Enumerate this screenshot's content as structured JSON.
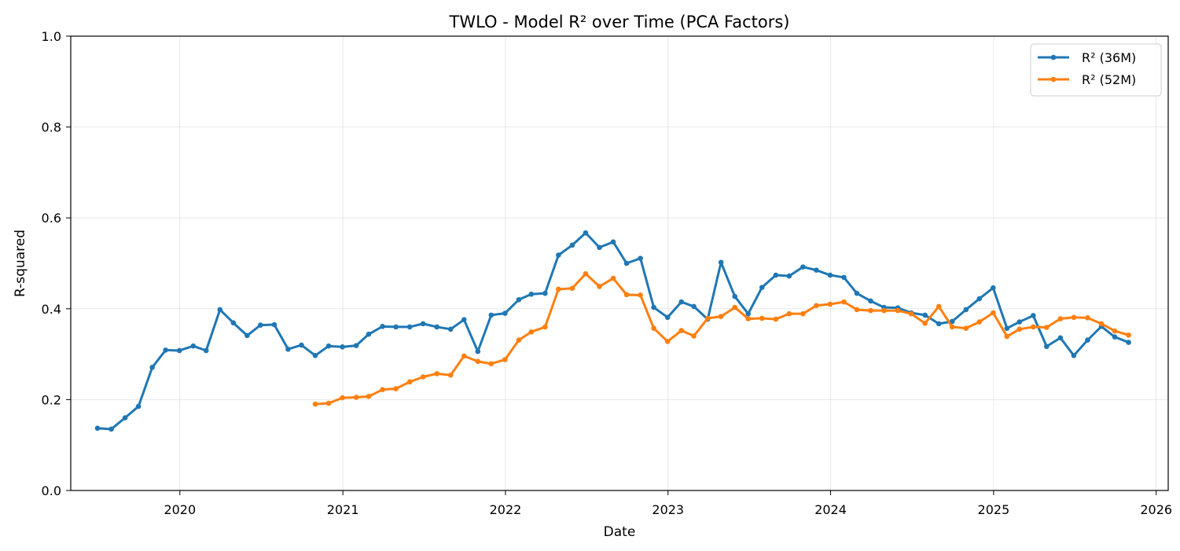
{
  "chart_data": {
    "type": "line",
    "title": "TWLO - Model R² over Time (PCA Factors)",
    "xlabel": "Date",
    "ylabel": "R-squared",
    "xlim": [
      "2019-05-01",
      "2026-01-28"
    ],
    "ylim": [
      0,
      1.0
    ],
    "x_ticks": [
      "2020",
      "2021",
      "2022",
      "2023",
      "2024",
      "2025",
      "2026"
    ],
    "y_ticks": [
      "0.0",
      "0.2",
      "0.4",
      "0.6",
      "0.8",
      "1.0"
    ],
    "grid": true,
    "legend_position": "top-right",
    "series": [
      {
        "name": "R² (36M)",
        "color": "#1f77b4",
        "x": [
          "2019-06-30",
          "2019-07-31",
          "2019-08-31",
          "2019-09-30",
          "2019-10-31",
          "2019-11-30",
          "2019-12-31",
          "2020-01-31",
          "2020-02-29",
          "2020-03-31",
          "2020-04-30",
          "2020-05-31",
          "2020-06-30",
          "2020-07-31",
          "2020-08-31",
          "2020-09-30",
          "2020-10-31",
          "2020-11-30",
          "2020-12-31",
          "2021-01-31",
          "2021-02-28",
          "2021-03-31",
          "2021-04-30",
          "2021-05-31",
          "2021-06-30",
          "2021-07-31",
          "2021-08-31",
          "2021-09-30",
          "2021-10-31",
          "2021-11-30",
          "2021-12-31",
          "2022-01-31",
          "2022-02-28",
          "2022-03-31",
          "2022-04-30",
          "2022-05-31",
          "2022-06-30",
          "2022-07-31",
          "2022-08-31",
          "2022-09-30",
          "2022-10-31",
          "2022-11-30",
          "2022-12-31",
          "2023-01-31",
          "2023-02-28",
          "2023-03-31",
          "2023-04-30",
          "2023-05-31",
          "2023-06-30",
          "2023-07-31",
          "2023-08-31",
          "2023-09-30",
          "2023-10-31",
          "2023-11-30",
          "2023-12-31",
          "2024-01-31",
          "2024-02-29",
          "2024-03-31",
          "2024-04-30",
          "2024-05-31",
          "2024-06-30",
          "2024-07-31",
          "2024-08-31",
          "2024-09-30",
          "2024-10-31",
          "2024-11-30",
          "2024-12-31",
          "2025-01-31",
          "2025-02-28",
          "2025-03-31",
          "2025-04-30",
          "2025-05-31",
          "2025-06-30",
          "2025-07-31",
          "2025-08-31",
          "2025-09-30",
          "2025-10-31"
        ],
        "values": [
          0.137,
          0.135,
          0.16,
          0.185,
          0.271,
          0.309,
          0.308,
          0.318,
          0.308,
          0.398,
          0.369,
          0.341,
          0.364,
          0.365,
          0.311,
          0.32,
          0.297,
          0.318,
          0.316,
          0.319,
          0.344,
          0.361,
          0.36,
          0.36,
          0.367,
          0.36,
          0.355,
          0.376,
          0.306,
          0.386,
          0.39,
          0.42,
          0.432,
          0.434,
          0.518,
          0.54,
          0.567,
          0.535,
          0.547,
          0.5,
          0.511,
          0.403,
          0.381,
          0.415,
          0.405,
          0.377,
          0.502,
          0.427,
          0.389,
          0.447,
          0.474,
          0.472,
          0.492,
          0.485,
          0.474,
          0.469,
          0.434,
          0.417,
          0.403,
          0.402,
          0.391,
          0.386,
          0.367,
          0.372,
          0.398,
          0.422,
          0.446,
          0.357,
          0.371,
          0.385,
          0.317,
          0.336,
          0.297,
          0.331,
          0.361,
          0.338,
          0.326
        ]
      },
      {
        "name": "R² (52M)",
        "color": "#ff7f0e",
        "x": [
          "2020-10-31",
          "2020-11-30",
          "2020-12-31",
          "2021-01-31",
          "2021-02-28",
          "2021-03-31",
          "2021-04-30",
          "2021-05-31",
          "2021-06-30",
          "2021-07-31",
          "2021-08-31",
          "2021-09-30",
          "2021-10-31",
          "2021-11-30",
          "2021-12-31",
          "2022-01-31",
          "2022-02-28",
          "2022-03-31",
          "2022-04-30",
          "2022-05-31",
          "2022-06-30",
          "2022-07-31",
          "2022-08-31",
          "2022-09-30",
          "2022-10-31",
          "2022-11-30",
          "2022-12-31",
          "2023-01-31",
          "2023-02-28",
          "2023-03-31",
          "2023-04-30",
          "2023-05-31",
          "2023-06-30",
          "2023-07-31",
          "2023-08-31",
          "2023-09-30",
          "2023-10-31",
          "2023-11-30",
          "2023-12-31",
          "2024-01-31",
          "2024-02-29",
          "2024-03-31",
          "2024-04-30",
          "2024-05-31",
          "2024-06-30",
          "2024-07-31",
          "2024-08-31",
          "2024-09-30",
          "2024-10-31",
          "2024-11-30",
          "2024-12-31",
          "2025-01-31",
          "2025-02-28",
          "2025-03-31",
          "2025-04-30",
          "2025-05-31",
          "2025-06-30",
          "2025-07-31",
          "2025-08-31",
          "2025-09-30",
          "2025-10-31"
        ],
        "values": [
          0.19,
          0.192,
          0.204,
          0.205,
          0.207,
          0.222,
          0.224,
          0.239,
          0.25,
          0.257,
          0.254,
          0.296,
          0.284,
          0.279,
          0.288,
          0.331,
          0.349,
          0.36,
          0.443,
          0.445,
          0.477,
          0.449,
          0.467,
          0.431,
          0.43,
          0.357,
          0.328,
          0.352,
          0.34,
          0.379,
          0.383,
          0.403,
          0.378,
          0.379,
          0.377,
          0.389,
          0.389,
          0.407,
          0.41,
          0.415,
          0.398,
          0.396,
          0.396,
          0.396,
          0.389,
          0.368,
          0.405,
          0.36,
          0.357,
          0.371,
          0.391,
          0.339,
          0.355,
          0.36,
          0.359,
          0.378,
          0.381,
          0.38,
          0.367,
          0.351,
          0.342
        ]
      }
    ]
  }
}
